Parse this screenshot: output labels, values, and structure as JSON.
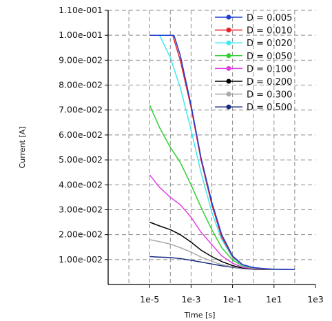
{
  "chart_data": {
    "type": "line",
    "xlabel": "Time [s]",
    "ylabel": "Current [A]",
    "x_scale": "log",
    "xlim": [
      1e-07,
      1000.0
    ],
    "ylim": [
      0,
      0.11
    ],
    "x_ticks": [
      {
        "value": 1e-05,
        "label": "1e-5"
      },
      {
        "value": 0.001,
        "label": "1e-3"
      },
      {
        "value": 0.1,
        "label": "1e-1"
      },
      {
        "value": 10.0,
        "label": "1e1"
      },
      {
        "value": 1000.0,
        "label": "1e3"
      }
    ],
    "y_ticks": [
      {
        "value": 0.01,
        "label": "1.00e-002"
      },
      {
        "value": 0.02,
        "label": "2.00e-002"
      },
      {
        "value": 0.03,
        "label": "3.00e-002"
      },
      {
        "value": 0.04,
        "label": "4.00e-002"
      },
      {
        "value": 0.05,
        "label": "5.00e-002"
      },
      {
        "value": 0.06,
        "label": "6.00e-002"
      },
      {
        "value": 0.07,
        "label": "7.00e-002"
      },
      {
        "value": 0.08,
        "label": "8.00e-002"
      },
      {
        "value": 0.09,
        "label": "9.00e-002"
      },
      {
        "value": 0.1,
        "label": "1.00e-001"
      },
      {
        "value": 0.11,
        "label": "1.10e-001"
      }
    ],
    "grid": true,
    "legend_position": "top-right",
    "series": [
      {
        "name": "D = 0.005",
        "color": "#1f3fd0",
        "x": [
          1e-05,
          3e-05,
          0.0001,
          0.00015,
          0.0003,
          0.001,
          0.003,
          0.01,
          0.03,
          0.1,
          0.3,
          1,
          3,
          10,
          100
        ],
        "y": [
          0.1,
          0.1,
          0.1,
          0.1,
          0.092,
          0.072,
          0.051,
          0.033,
          0.02,
          0.0115,
          0.008,
          0.0068,
          0.0064,
          0.0061,
          0.006
        ]
      },
      {
        "name": "D = 0.010",
        "color": "#e8202a",
        "x": [
          1e-05,
          3e-05,
          0.0001,
          0.00013,
          0.0003,
          0.001,
          0.003,
          0.01,
          0.03,
          0.1,
          0.3,
          1,
          3,
          10,
          100
        ],
        "y": [
          0.1,
          0.1,
          0.1,
          0.1,
          0.09,
          0.071,
          0.05,
          0.032,
          0.019,
          0.0112,
          0.0079,
          0.0067,
          0.0063,
          0.0061,
          0.006
        ]
      },
      {
        "name": "D = 0.020",
        "color": "#40e8f0",
        "x": [
          1e-05,
          2e-05,
          3e-05,
          0.0001,
          0.0003,
          0.001,
          0.003,
          0.01,
          0.03,
          0.1,
          0.3,
          1,
          3,
          10,
          100
        ],
        "y": [
          0.1,
          0.1,
          0.1,
          0.091,
          0.079,
          0.062,
          0.045,
          0.029,
          0.018,
          0.0108,
          0.0077,
          0.0066,
          0.0063,
          0.0061,
          0.006
        ]
      },
      {
        "name": "D = 0.050",
        "color": "#30d030",
        "x": [
          1e-05,
          3e-05,
          0.0001,
          0.0003,
          0.001,
          0.003,
          0.01,
          0.03,
          0.1,
          0.3,
          1,
          3,
          10,
          100
        ],
        "y": [
          0.072,
          0.063,
          0.055,
          0.049,
          0.04,
          0.031,
          0.022,
          0.0148,
          0.0098,
          0.0074,
          0.0065,
          0.0062,
          0.006,
          0.006
        ]
      },
      {
        "name": "D = 0.100",
        "color": "#e040e0",
        "x": [
          1e-05,
          3e-05,
          0.0001,
          0.0003,
          0.001,
          0.003,
          0.01,
          0.03,
          0.1,
          0.3,
          1,
          3,
          10,
          100
        ],
        "y": [
          0.044,
          0.039,
          0.035,
          0.032,
          0.027,
          0.021,
          0.016,
          0.0115,
          0.0085,
          0.0069,
          0.0063,
          0.0061,
          0.006,
          0.006
        ]
      },
      {
        "name": "D = 0.200",
        "color": "#000000",
        "x": [
          1e-05,
          3e-05,
          0.0001,
          0.0003,
          0.001,
          0.003,
          0.01,
          0.03,
          0.1,
          0.3,
          1,
          3,
          10,
          100
        ],
        "y": [
          0.025,
          0.0235,
          0.022,
          0.02,
          0.017,
          0.0138,
          0.0112,
          0.0092,
          0.0076,
          0.0066,
          0.0062,
          0.006,
          0.006,
          0.006
        ]
      },
      {
        "name": "D = 0.300",
        "color": "#a8a8a8",
        "x": [
          1e-05,
          3e-05,
          0.0001,
          0.0003,
          0.001,
          0.003,
          0.01,
          0.03,
          0.1,
          0.3,
          1,
          3,
          10,
          100
        ],
        "y": [
          0.018,
          0.0172,
          0.0162,
          0.0148,
          0.013,
          0.011,
          0.0093,
          0.008,
          0.0071,
          0.0065,
          0.0061,
          0.006,
          0.006,
          0.006
        ]
      },
      {
        "name": "D = 0.500",
        "color": "#1a2a80",
        "x": [
          1e-05,
          3e-05,
          0.0001,
          0.0003,
          0.001,
          0.003,
          0.01,
          0.03,
          0.1,
          0.3,
          1,
          3,
          10,
          100
        ],
        "y": [
          0.0112,
          0.011,
          0.0108,
          0.0104,
          0.0097,
          0.009,
          0.0082,
          0.0075,
          0.0069,
          0.0064,
          0.0061,
          0.006,
          0.006,
          0.006
        ]
      }
    ]
  }
}
